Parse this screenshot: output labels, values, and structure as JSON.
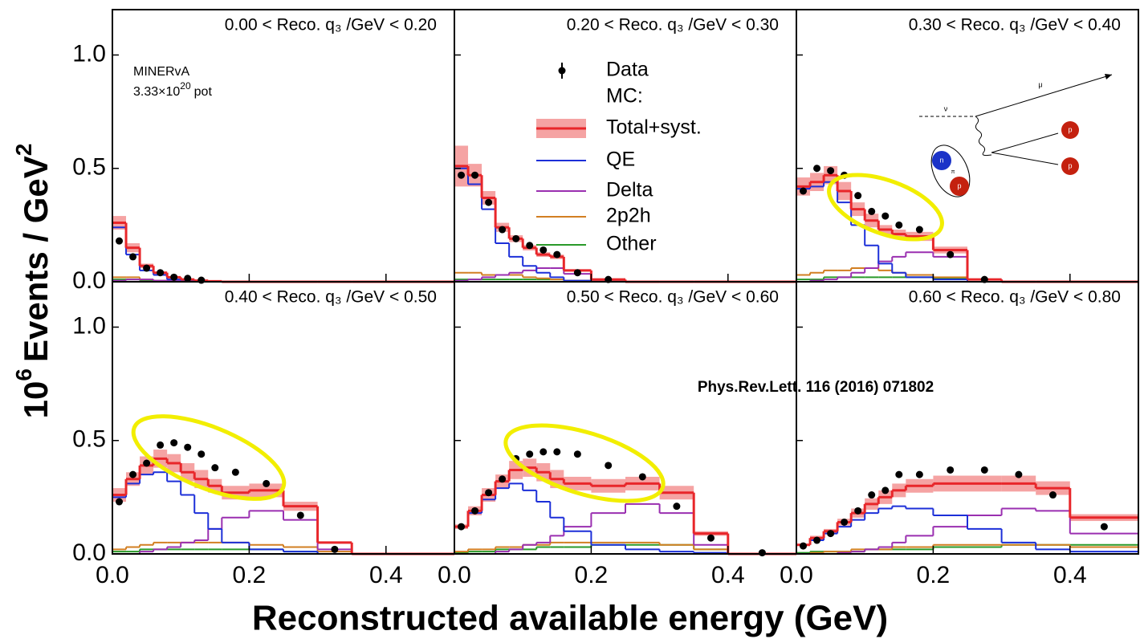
{
  "chart_data": {
    "type": "histogram",
    "x_label": "Reconstructed available energy (GeV)",
    "y_label": [
      "10",
      "6",
      "Events / GeV",
      "2"
    ],
    "xlim": [
      0,
      0.5
    ],
    "ylim": [
      0,
      1.2
    ],
    "xticks": [
      {
        "value": 0,
        "label": "0.0"
      },
      0.2,
      0.4
    ],
    "yticks": [
      {
        "value": 0,
        "label": "0.0"
      },
      0.5,
      {
        "value": 1,
        "label": "1.0"
      }
    ],
    "bins": [
      0,
      0.02,
      0.04,
      0.06,
      0.08,
      0.1,
      0.12,
      0.14,
      0.16,
      0.2,
      0.25,
      0.3,
      0.35,
      0.4,
      0.5
    ],
    "legend_heading": "MC:",
    "series": [
      {
        "name": "Data",
        "color": "#000000",
        "style": "points"
      },
      {
        "name": "Total+syst.",
        "color": "#e8262a",
        "band_color": "#f5a3a3",
        "style": "step"
      },
      {
        "name": "QE",
        "color": "#1c2fd8",
        "style": "step"
      },
      {
        "name": "Delta",
        "color": "#9a2fb0",
        "style": "step"
      },
      {
        "name": "2p2h",
        "color": "#d27f22",
        "style": "step"
      },
      {
        "name": "Other",
        "color": "#2a9a2a",
        "style": "step"
      }
    ],
    "panels": [
      {
        "title": "0.00 < Reco. q₃ /GeV < 0.20",
        "values": [
          [
            0.18,
            0.11,
            0.06,
            0.04,
            0.02,
            0.015,
            0.007,
            null,
            null,
            null,
            null,
            null,
            null,
            null
          ],
          [
            0.26,
            0.15,
            0.07,
            0.04,
            0.02,
            0.01,
            0.005,
            0.002,
            0,
            0,
            0,
            0,
            0,
            0
          ],
          [
            0.24,
            0.12,
            0.05,
            0.03,
            0.01,
            0.005,
            0,
            0,
            0,
            0,
            0,
            0,
            0,
            0
          ],
          [
            0.005,
            0.01,
            0.01,
            0.005,
            0.003,
            0.002,
            0,
            0,
            0,
            0,
            0,
            0,
            0,
            0
          ],
          [
            0.02,
            0.02,
            0.01,
            0.005,
            0.003,
            0.002,
            0.001,
            0,
            0,
            0,
            0,
            0,
            0,
            0
          ],
          [
            0.01,
            0.01,
            0.005,
            0.003,
            0.002,
            0.001,
            0,
            0,
            0,
            0,
            0,
            0,
            0,
            0
          ]
        ],
        "errors": [
          0.03,
          0.02,
          0.01,
          0.005,
          0.003,
          0.002,
          0.001,
          0.001,
          0,
          0,
          0,
          0,
          0,
          0
        ]
      },
      {
        "title": "0.20 < Reco. q₃ /GeV < 0.30",
        "values": [
          [
            0.47,
            0.47,
            0.35,
            0.23,
            0.19,
            0.16,
            0.14,
            0.12,
            0.04,
            0.01,
            null,
            null,
            null,
            null
          ],
          [
            0.51,
            0.47,
            0.37,
            0.24,
            0.19,
            0.15,
            0.12,
            0.11,
            0.05,
            0.01,
            0,
            0,
            0,
            0
          ],
          [
            0.5,
            0.43,
            0.32,
            0.17,
            0.11,
            0.07,
            0.04,
            0.02,
            0.005,
            0,
            0,
            0,
            0,
            0
          ],
          [
            0.005,
            0.01,
            0.02,
            0.03,
            0.04,
            0.05,
            0.06,
            0.06,
            0.035,
            0.008,
            0,
            0,
            0,
            0
          ],
          [
            0.04,
            0.04,
            0.03,
            0.03,
            0.03,
            0.02,
            0.015,
            0.01,
            0.005,
            0.002,
            0,
            0,
            0,
            0
          ],
          [
            0.01,
            0.01,
            0.01,
            0.01,
            0.01,
            0.01,
            0.01,
            0.01,
            0.005,
            0.002,
            0,
            0,
            0,
            0
          ]
        ],
        "errors": [
          0.09,
          0.05,
          0.03,
          0.02,
          0.015,
          0.012,
          0.01,
          0.01,
          0.005,
          0.002,
          0,
          0,
          0,
          0
        ]
      },
      {
        "title": "0.30 < Reco. q₃ /GeV < 0.40",
        "values": [
          [
            0.4,
            0.5,
            0.49,
            0.47,
            0.38,
            0.31,
            0.29,
            0.25,
            0.23,
            0.12,
            0.01,
            null,
            null,
            null
          ],
          [
            0.42,
            0.44,
            0.47,
            0.4,
            0.32,
            0.27,
            0.23,
            0.21,
            0.2,
            0.14,
            0.01,
            0,
            0,
            0
          ],
          [
            0.41,
            0.42,
            0.44,
            0.35,
            0.25,
            0.16,
            0.08,
            0.04,
            0.02,
            0.01,
            0,
            0,
            0,
            0
          ],
          [
            0,
            0.005,
            0.01,
            0.02,
            0.04,
            0.06,
            0.09,
            0.11,
            0.13,
            0.11,
            0.01,
            0,
            0,
            0
          ],
          [
            0.03,
            0.04,
            0.05,
            0.05,
            0.06,
            0.06,
            0.05,
            0.04,
            0.03,
            0.02,
            0,
            0,
            0,
            0
          ],
          [
            0.01,
            0.01,
            0.02,
            0.02,
            0.02,
            0.02,
            0.02,
            0.02,
            0.02,
            0.015,
            0,
            0,
            0,
            0
          ]
        ],
        "errors": [
          0.04,
          0.04,
          0.04,
          0.04,
          0.03,
          0.03,
          0.02,
          0.02,
          0.02,
          0.015,
          0.002,
          0,
          0,
          0
        ]
      },
      {
        "title": "0.40 < Reco. q₃ /GeV < 0.50",
        "values": [
          [
            0.23,
            0.35,
            0.4,
            0.48,
            0.49,
            0.47,
            0.44,
            0.38,
            0.36,
            0.31,
            0.17,
            0.02,
            null,
            null
          ],
          [
            0.26,
            0.33,
            0.39,
            0.42,
            0.4,
            0.36,
            0.33,
            0.3,
            0.27,
            0.28,
            0.21,
            0.05,
            0,
            0
          ],
          [
            0.25,
            0.31,
            0.35,
            0.36,
            0.32,
            0.26,
            0.18,
            0.11,
            0.05,
            0.02,
            0.01,
            0,
            0,
            0
          ],
          [
            0,
            0,
            0.01,
            0.02,
            0.03,
            0.05,
            0.06,
            0.11,
            0.16,
            0.19,
            0.15,
            0.02,
            0,
            0
          ],
          [
            0.02,
            0.03,
            0.04,
            0.05,
            0.05,
            0.05,
            0.05,
            0.05,
            0.05,
            0.04,
            0.03,
            0.01,
            0,
            0
          ],
          [
            0.01,
            0.01,
            0.02,
            0.02,
            0.02,
            0.02,
            0.02,
            0.02,
            0.02,
            0.02,
            0.01,
            0,
            0,
            0
          ]
        ],
        "errors": [
          0.03,
          0.03,
          0.04,
          0.04,
          0.04,
          0.04,
          0.04,
          0.03,
          0.03,
          0.03,
          0.02,
          0.005,
          0,
          0
        ]
      },
      {
        "title": "0.50 < Reco. q₃ /GeV < 0.60",
        "values": [
          [
            0.12,
            0.19,
            0.27,
            0.33,
            0.42,
            0.44,
            0.45,
            0.45,
            0.44,
            0.39,
            0.34,
            0.21,
            0.07,
            0.005
          ],
          [
            0.12,
            0.19,
            0.26,
            0.32,
            0.37,
            0.38,
            0.36,
            0.33,
            0.31,
            0.3,
            0.31,
            0.27,
            0.09,
            0
          ],
          [
            0.12,
            0.18,
            0.24,
            0.29,
            0.31,
            0.28,
            0.23,
            0.16,
            0.1,
            0.04,
            0.02,
            0.01,
            0.005,
            0
          ],
          [
            0,
            0,
            0,
            0.01,
            0.02,
            0.04,
            0.05,
            0.08,
            0.12,
            0.18,
            0.22,
            0.18,
            0.04,
            0
          ],
          [
            0.01,
            0.02,
            0.02,
            0.03,
            0.03,
            0.04,
            0.04,
            0.05,
            0.05,
            0.05,
            0.05,
            0.04,
            0.02,
            0
          ],
          [
            0.005,
            0.01,
            0.01,
            0.02,
            0.02,
            0.02,
            0.03,
            0.03,
            0.03,
            0.04,
            0.04,
            0.04,
            0.02,
            0
          ]
        ],
        "errors": [
          0.01,
          0.02,
          0.03,
          0.03,
          0.04,
          0.04,
          0.04,
          0.04,
          0.03,
          0.03,
          0.03,
          0.03,
          0.01,
          0
        ]
      },
      {
        "title": "0.60 < Reco. q₃ /GeV < 0.80",
        "values": [
          [
            0.035,
            0.06,
            0.09,
            0.14,
            0.19,
            0.26,
            0.28,
            0.35,
            0.35,
            0.37,
            0.37,
            0.35,
            0.26,
            0.12
          ],
          [
            0.04,
            0.07,
            0.1,
            0.14,
            0.18,
            0.22,
            0.25,
            0.28,
            0.3,
            0.31,
            0.31,
            0.31,
            0.29,
            0.16
          ],
          [
            0.04,
            0.06,
            0.09,
            0.12,
            0.15,
            0.18,
            0.2,
            0.21,
            0.2,
            0.17,
            0.11,
            0.05,
            0.02,
            0.01
          ],
          [
            0,
            0,
            0,
            0.005,
            0.01,
            0.02,
            0.03,
            0.05,
            0.08,
            0.12,
            0.17,
            0.2,
            0.19,
            0.09
          ],
          [
            0,
            0.005,
            0.01,
            0.01,
            0.02,
            0.02,
            0.02,
            0.03,
            0.03,
            0.04,
            0.04,
            0.04,
            0.04,
            0.03
          ],
          [
            0.005,
            0.01,
            0.01,
            0.01,
            0.01,
            0.02,
            0.02,
            0.02,
            0.02,
            0.03,
            0.03,
            0.04,
            0.04,
            0.04
          ]
        ],
        "errors": [
          0.005,
          0.01,
          0.01,
          0.015,
          0.02,
          0.025,
          0.03,
          0.03,
          0.03,
          0.035,
          0.035,
          0.035,
          0.03,
          0.015
        ]
      }
    ]
  },
  "annotations": {
    "experiment": "MINERvA",
    "exposure": [
      "3.33×10",
      "20",
      "pot"
    ],
    "reference": "Phys.Rev.Lett. 116 (2016) 071802"
  },
  "diagram": {
    "nu": "ν",
    "mu": "μ",
    "proton": "p",
    "neutron": "n",
    "pion": "π"
  }
}
